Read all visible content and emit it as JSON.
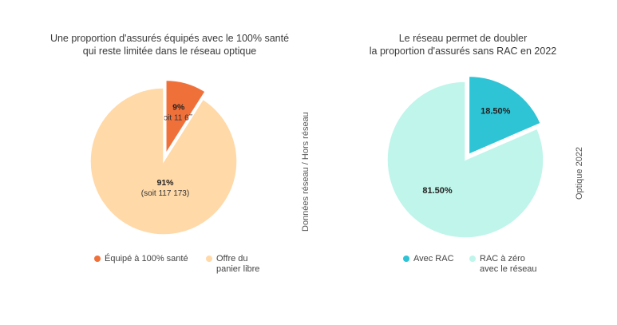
{
  "chart_data": [
    {
      "type": "pie",
      "title": "Une proportion d'assurés équipés avec le 100% santé",
      "subtitle": "qui reste limitée dans le réseau optique",
      "slices": [
        {
          "label": "Équipé à 100% santé",
          "value": 9,
          "pct_label": "9%",
          "detail": "(soit 11 671)",
          "color": "#f0703a"
        },
        {
          "label": "Offre du panier libre",
          "value": 91,
          "pct_label": "91%",
          "detail": "(soit 117 173)",
          "color": "#ffd9a8"
        }
      ],
      "legend": [
        "Équipé à 100% santé",
        "Offre du panier libre"
      ],
      "side_label": "Données réseau / Hors réseau"
    },
    {
      "type": "pie",
      "title": "Le réseau permet de doubler",
      "subtitle": "la proportion d'assurés sans RAC en 2022",
      "slices": [
        {
          "label": "Avec RAC",
          "value": 18.5,
          "pct_label": "18.50%",
          "color": "#2ec4d6"
        },
        {
          "label": "RAC à zéro avec le réseau",
          "value": 81.5,
          "pct_label": "81.50%",
          "color": "#bff5ea"
        }
      ],
      "legend": [
        "Avec RAC",
        "RAC à zéro avec le réseau"
      ],
      "side_label": "Optique 2022"
    }
  ]
}
